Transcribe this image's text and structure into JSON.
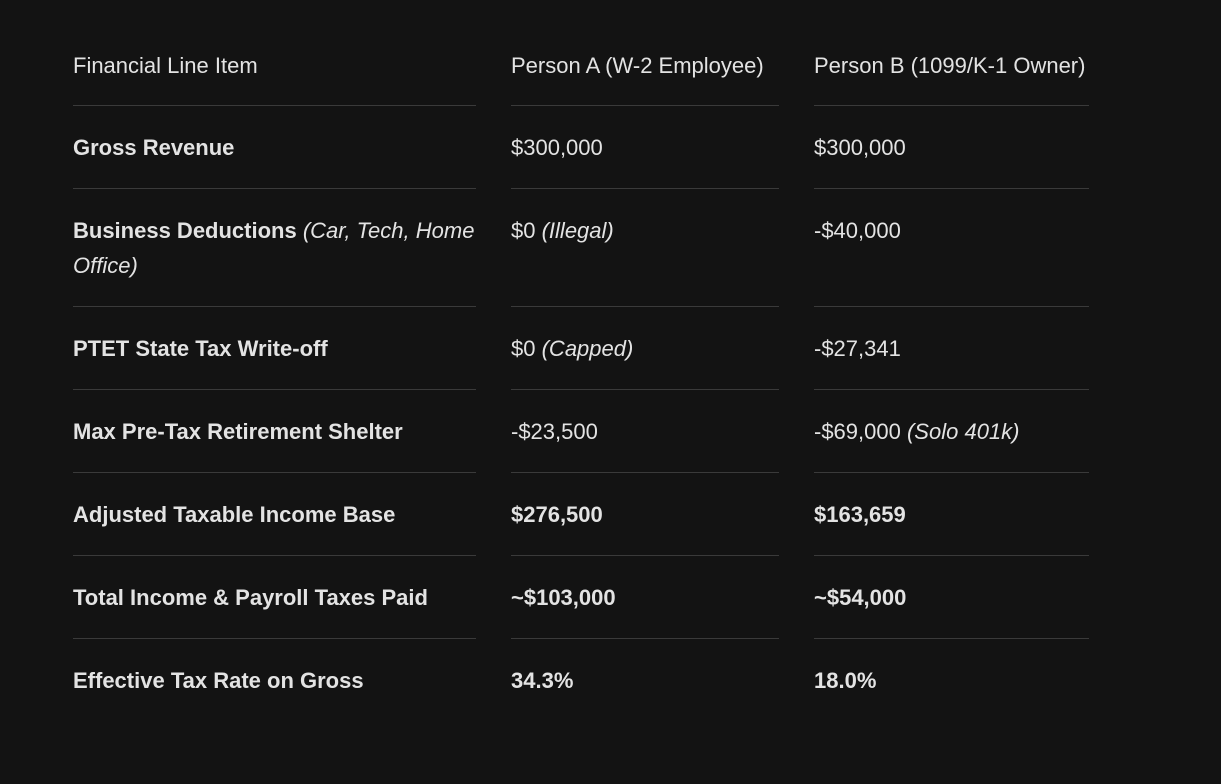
{
  "table": {
    "header": [
      "Financial Line Item",
      "Person A (W-2 Employee)",
      "Person B (1099/K-1 Owner)"
    ],
    "rows": [
      [
        {
          "text": "Gross Revenue"
        },
        {
          "text": "$300,000"
        },
        {
          "text": "$300,000"
        }
      ],
      [
        {
          "text": "Business Deductions",
          "note": "(Car, Tech, Home Office)"
        },
        {
          "text": "$0",
          "note": "(Illegal)"
        },
        {
          "text": "-$40,000"
        }
      ],
      [
        {
          "text": "PTET State Tax Write-off"
        },
        {
          "text": "$0",
          "note": "(Capped)"
        },
        {
          "text": "-$27,341"
        }
      ],
      [
        {
          "text": "Max Pre-Tax Retirement Shelter"
        },
        {
          "text": "-$23,500"
        },
        {
          "text": "-$69,000",
          "note": "(Solo 401k)"
        }
      ],
      [
        {
          "text": "Adjusted Taxable Income Base"
        },
        {
          "text": "$276,500"
        },
        {
          "text": "$163,659"
        }
      ],
      [
        {
          "text": "Total Income & Payroll Taxes Paid"
        },
        {
          "text": "~$103,000"
        },
        {
          "text": "~$54,000"
        }
      ],
      [
        {
          "text": "Effective Tax Rate on Gross"
        },
        {
          "text": "34.3%"
        },
        {
          "text": "18.0%"
        }
      ]
    ]
  }
}
